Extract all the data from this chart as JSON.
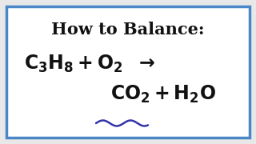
{
  "title": "How to Balance:",
  "bg_color": "#e8e8e8",
  "inner_bg_color": "#f5f5f5",
  "border_color": "#4a86c8",
  "text_color": "#111111",
  "title_fontsize": 15,
  "equation_fontsize": 17,
  "wavy_color": "#3333aa",
  "fig_width": 3.2,
  "fig_height": 1.8,
  "border_lw": 2.5
}
